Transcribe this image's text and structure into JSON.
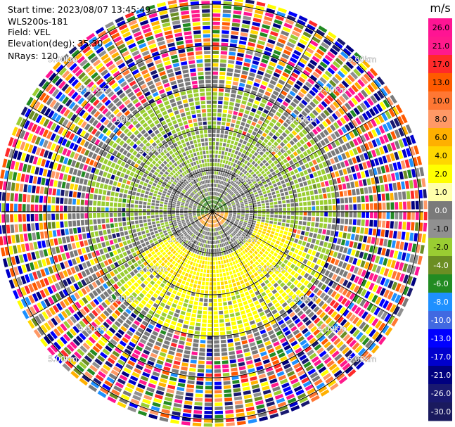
{
  "header": {
    "start_time": "Start time: 2023/08/07 13:45:49",
    "instrument": "WLS200s-181",
    "field": "Field: VEL",
    "elevation": "Elevation(deg): 35.30",
    "nrays": "NRays: 120"
  },
  "colorbar": {
    "unit": "m/s",
    "ticks": [
      "26.0",
      "21.0",
      "17.0",
      "13.0",
      "10.0",
      "8.0",
      "6.0",
      "4.0",
      "2.0",
      "1.0",
      "0.0",
      "-1.0",
      "-2.0",
      "-4.0",
      "-6.0",
      "-8.0",
      "-10.0",
      "-13.0",
      "-17.0",
      "-21.0",
      "-26.0",
      "-30.0"
    ],
    "colors": [
      "#ff1493",
      "#ff1a8c",
      "#ff2a2a",
      "#ff5a00",
      "#ff7733",
      "#ff9966",
      "#ffb000",
      "#ffd700",
      "#ffff00",
      "#ffffaa",
      "#7a7a7a",
      "#909090",
      "#9acd32",
      "#6b8e23",
      "#228b22",
      "#1e90ff",
      "#4169e1",
      "#0000ff",
      "#0000cd",
      "#000080",
      "#191970",
      "#1a1a5e"
    ]
  },
  "range_rings": {
    "labels": [
      "1.00km",
      "2.00km",
      "3.00km",
      "4.00km",
      "5.00km"
    ]
  },
  "chart_data": {
    "type": "heatmap",
    "projection": "polar PPI",
    "field": "VEL",
    "units": "m/s",
    "nrays": 120,
    "elevation_deg": 35.3,
    "range_km": [
      0,
      5.2
    ],
    "color_levels": [
      26.0,
      21.0,
      17.0,
      13.0,
      10.0,
      8.0,
      6.0,
      4.0,
      2.0,
      1.0,
      0.0,
      -1.0,
      -2.0,
      -4.0,
      -6.0,
      -8.0,
      -10.0,
      -13.0,
      -17.0,
      -21.0,
      -26.0,
      -30.0
    ],
    "ring_spacing_km": 1.0,
    "spoke_count": 12
  }
}
